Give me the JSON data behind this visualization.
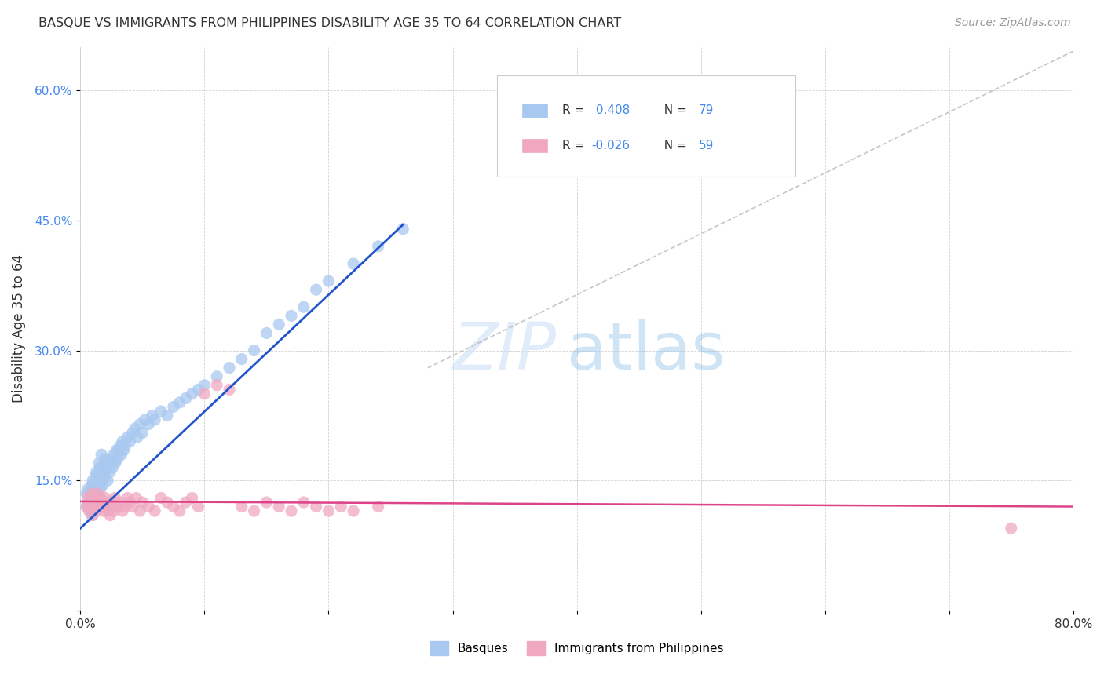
{
  "title": "BASQUE VS IMMIGRANTS FROM PHILIPPINES DISABILITY AGE 35 TO 64 CORRELATION CHART",
  "source": "Source: ZipAtlas.com",
  "ylabel": "Disability Age 35 to 64",
  "x_min": 0.0,
  "x_max": 0.8,
  "y_min": 0.0,
  "y_max": 0.65,
  "x_ticks": [
    0.0,
    0.1,
    0.2,
    0.3,
    0.4,
    0.5,
    0.6,
    0.7,
    0.8
  ],
  "x_tick_labels": [
    "0.0%",
    "",
    "",
    "",
    "",
    "",
    "",
    "",
    "80.0%"
  ],
  "y_ticks": [
    0.0,
    0.15,
    0.3,
    0.45,
    0.6
  ],
  "y_tick_labels": [
    "",
    "15.0%",
    "30.0%",
    "45.0%",
    "60.0%"
  ],
  "basque_color": "#a8c8f0",
  "philippines_color": "#f0a8c0",
  "line_blue": "#2255cc",
  "line_pink": "#dd4488",
  "line_dashed_color": "#b8b8b8",
  "basque_x": [
    0.005,
    0.005,
    0.006,
    0.007,
    0.008,
    0.008,
    0.009,
    0.009,
    0.01,
    0.01,
    0.01,
    0.01,
    0.011,
    0.011,
    0.012,
    0.012,
    0.013,
    0.013,
    0.014,
    0.014,
    0.015,
    0.015,
    0.015,
    0.016,
    0.016,
    0.017,
    0.017,
    0.018,
    0.019,
    0.02,
    0.02,
    0.021,
    0.022,
    0.023,
    0.024,
    0.025,
    0.026,
    0.027,
    0.028,
    0.029,
    0.03,
    0.031,
    0.032,
    0.033,
    0.034,
    0.035,
    0.036,
    0.038,
    0.04,
    0.042,
    0.044,
    0.046,
    0.048,
    0.05,
    0.052,
    0.055,
    0.058,
    0.06,
    0.065,
    0.07,
    0.075,
    0.08,
    0.085,
    0.09,
    0.095,
    0.1,
    0.11,
    0.12,
    0.13,
    0.14,
    0.15,
    0.16,
    0.17,
    0.18,
    0.19,
    0.2,
    0.22,
    0.24,
    0.26
  ],
  "basque_y": [
    0.12,
    0.135,
    0.14,
    0.125,
    0.115,
    0.13,
    0.145,
    0.11,
    0.13,
    0.14,
    0.15,
    0.12,
    0.135,
    0.125,
    0.155,
    0.14,
    0.13,
    0.16,
    0.145,
    0.135,
    0.17,
    0.125,
    0.155,
    0.14,
    0.165,
    0.15,
    0.18,
    0.145,
    0.16,
    0.155,
    0.175,
    0.165,
    0.15,
    0.17,
    0.16,
    0.175,
    0.165,
    0.18,
    0.17,
    0.185,
    0.175,
    0.185,
    0.19,
    0.18,
    0.195,
    0.185,
    0.19,
    0.2,
    0.195,
    0.205,
    0.21,
    0.2,
    0.215,
    0.205,
    0.22,
    0.215,
    0.225,
    0.22,
    0.23,
    0.225,
    0.235,
    0.24,
    0.245,
    0.25,
    0.255,
    0.26,
    0.27,
    0.28,
    0.29,
    0.3,
    0.32,
    0.33,
    0.34,
    0.35,
    0.37,
    0.38,
    0.4,
    0.42,
    0.44
  ],
  "phil_x": [
    0.005,
    0.006,
    0.007,
    0.008,
    0.009,
    0.01,
    0.01,
    0.011,
    0.012,
    0.013,
    0.014,
    0.015,
    0.016,
    0.017,
    0.018,
    0.019,
    0.02,
    0.021,
    0.022,
    0.023,
    0.024,
    0.025,
    0.026,
    0.027,
    0.028,
    0.03,
    0.032,
    0.034,
    0.036,
    0.038,
    0.04,
    0.042,
    0.045,
    0.048,
    0.05,
    0.055,
    0.06,
    0.065,
    0.07,
    0.075,
    0.08,
    0.085,
    0.09,
    0.095,
    0.1,
    0.11,
    0.12,
    0.13,
    0.14,
    0.15,
    0.16,
    0.17,
    0.18,
    0.19,
    0.2,
    0.21,
    0.22,
    0.24,
    0.75
  ],
  "phil_y": [
    0.12,
    0.13,
    0.115,
    0.125,
    0.135,
    0.12,
    0.11,
    0.13,
    0.125,
    0.115,
    0.135,
    0.12,
    0.13,
    0.125,
    0.115,
    0.12,
    0.13,
    0.125,
    0.115,
    0.12,
    0.11,
    0.125,
    0.12,
    0.115,
    0.13,
    0.12,
    0.125,
    0.115,
    0.12,
    0.13,
    0.125,
    0.12,
    0.13,
    0.115,
    0.125,
    0.12,
    0.115,
    0.13,
    0.125,
    0.12,
    0.115,
    0.125,
    0.13,
    0.12,
    0.25,
    0.26,
    0.255,
    0.12,
    0.115,
    0.125,
    0.12,
    0.115,
    0.125,
    0.12,
    0.115,
    0.12,
    0.115,
    0.12,
    0.095
  ],
  "blue_line_x": [
    0.0,
    0.26
  ],
  "blue_line_y": [
    0.095,
    0.445
  ],
  "pink_line_x": [
    0.0,
    0.8
  ],
  "pink_line_y": [
    0.126,
    0.12
  ],
  "dash_line_x": [
    0.28,
    0.8
  ],
  "dash_line_y": [
    0.28,
    0.645
  ]
}
